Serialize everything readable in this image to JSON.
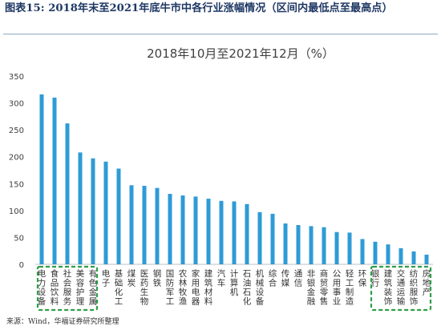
{
  "heading": {
    "label": "图表15:",
    "text": "2018年末至2021年底牛市中各行业涨幅情况（区间内最低点至最高点）"
  },
  "source": "来源：Wind，华福证券研究所整理",
  "chart_data": {
    "type": "bar",
    "title": "2018年10月至2021年12月（%）",
    "ylim": [
      0,
      350
    ],
    "yticks": [
      0,
      50,
      100,
      150,
      200,
      250,
      300,
      350
    ],
    "grid": false,
    "legend": "none",
    "bar_color": "#2e9bd6",
    "highlight_color": "#2f9e48",
    "categories": [
      "电力设备",
      "食品饮料",
      "社会服务",
      "美容护理",
      "有色金属",
      "电子",
      "基础化工",
      "煤炭",
      "医药生物",
      "钢铁",
      "国防军工",
      "农林牧渔",
      "家用电器",
      "建筑材料",
      "汽车",
      "计算机",
      "石油石化",
      "机械设备",
      "综合",
      "传媒",
      "通信",
      "非银金融",
      "商贸零售",
      "公用事业",
      "轻工制造",
      "环保",
      "银行",
      "建筑装饰",
      "交通运输",
      "纺织服饰",
      "房地产"
    ],
    "values": [
      316,
      310,
      262,
      208,
      197,
      191,
      178,
      147,
      146,
      142,
      131,
      128,
      126,
      122,
      118,
      117,
      112,
      97,
      94,
      76,
      73,
      71,
      69,
      60,
      59,
      47,
      42,
      37,
      30,
      24,
      18
    ],
    "highlight_groups": [
      {
        "label": "top",
        "indices": [
          0,
          1,
          2,
          3,
          4
        ]
      },
      {
        "label": "bottom",
        "indices": [
          26,
          27,
          28,
          29,
          30
        ]
      }
    ]
  }
}
